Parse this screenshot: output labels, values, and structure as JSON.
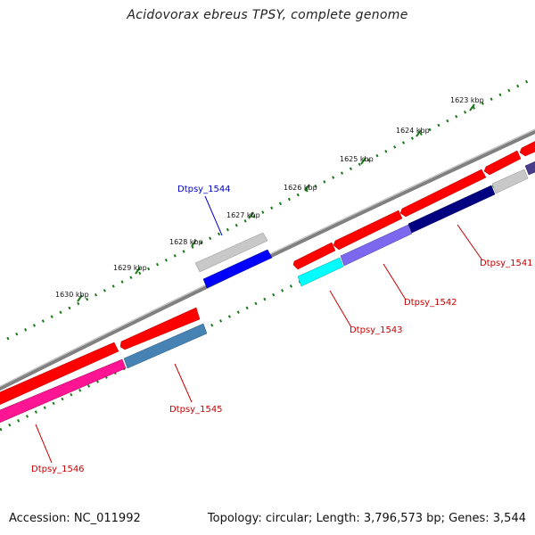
{
  "title": "Acidovorax ebreus TPSY, complete genome",
  "footer": {
    "accession": "Accession: NC_011992",
    "topology": "Topology: circular; Length: 3,796,573 bp; Genes: 3,544"
  },
  "kbp_labels": [
    "1623 kbp",
    "1624 kbp",
    "1625 kbp",
    "1626 kbp",
    "1627 kbp",
    "1628 kbp",
    "1629 kbp",
    "1630 kbp"
  ],
  "gene_labels": [
    "Dtpsy_1541",
    "Dtpsy_1542",
    "Dtpsy_1543",
    "Dtpsy_1544",
    "Dtpsy_1545",
    "Dtpsy_1546"
  ],
  "colors": {
    "backbone": "#808080",
    "ticks": "#1a7a1a",
    "red": "#ff0000",
    "gray": "#c8c8c8",
    "blue": "#0000ff",
    "cyan": "#00ffff",
    "lavender": "#7b68ee",
    "navy": "#000080",
    "steelblue": "#4682b4",
    "pink": "#ff1493",
    "label_red": "#cc0000",
    "label_blue": "#0000cc"
  }
}
